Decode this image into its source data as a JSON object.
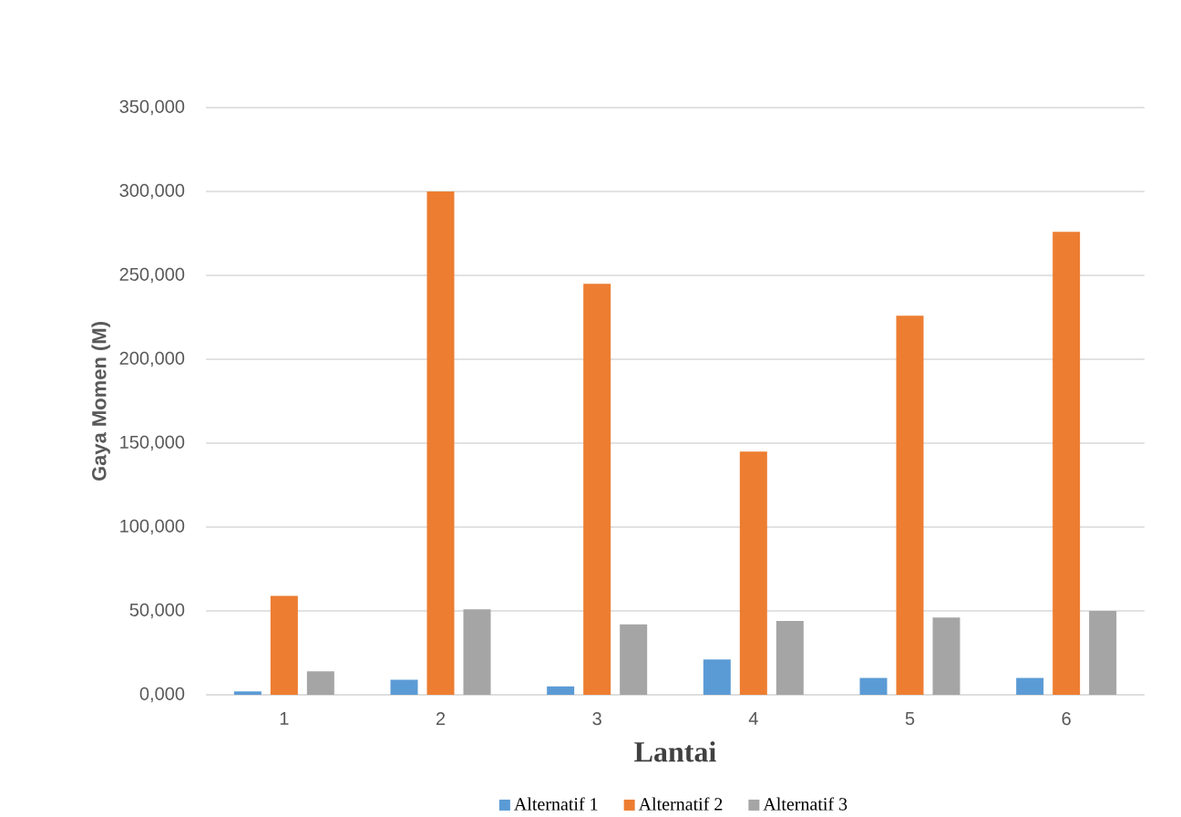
{
  "chart_data": {
    "type": "bar",
    "xlabel": "Lantai",
    "ylabel": "Gaya Momen (M)",
    "categories": [
      "1",
      "2",
      "3",
      "4",
      "5",
      "6"
    ],
    "series": [
      {
        "name": "Alternatif 1",
        "color": "#5b9bd5",
        "values": [
          2000,
          9000,
          5000,
          21000,
          10000,
          10000
        ]
      },
      {
        "name": "Alternatif 2",
        "color": "#ed7d31",
        "values": [
          59000,
          300000,
          245000,
          145000,
          226000,
          276000
        ]
      },
      {
        "name": "Alternatif 3",
        "color": "#a5a5a5",
        "values": [
          14000,
          51000,
          42000,
          44000,
          46000,
          50000
        ]
      }
    ],
    "ylim": [
      0,
      350000
    ],
    "yticks": [
      {
        "value": 0,
        "label": "0,000"
      },
      {
        "value": 50000,
        "label": "50,000"
      },
      {
        "value": 100000,
        "label": "100,000"
      },
      {
        "value": 150000,
        "label": "150,000"
      },
      {
        "value": 200000,
        "label": "200,000"
      },
      {
        "value": 250000,
        "label": "250,000"
      },
      {
        "value": 300000,
        "label": "300,000"
      },
      {
        "value": 350000,
        "label": "350,000"
      }
    ],
    "grid": "y",
    "legend": "bottom"
  }
}
